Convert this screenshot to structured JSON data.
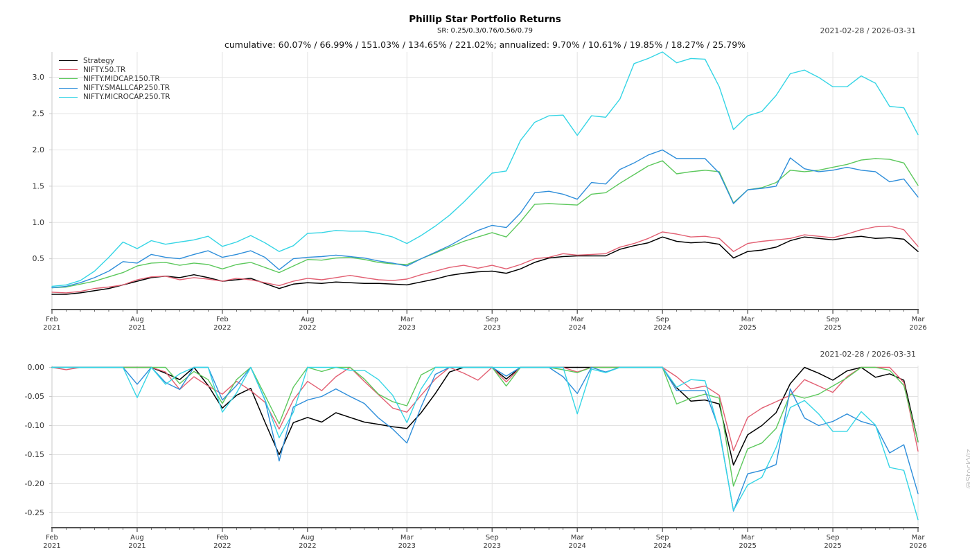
{
  "header": {
    "title": "Phillip Star Portfolio Returns",
    "subtitle": "SR: 0.25/0.3/0.76/0.56/0.79",
    "stats_line": "cumulative: 60.07% / 66.99% / 151.03% / 134.65% / 221.02%; annualized: 9.70% / 10.61% / 19.85% / 18.27% / 25.79%"
  },
  "watermark": "@StockViz",
  "chart_data": [
    {
      "type": "line",
      "title": "Cumulative returns",
      "date_range": "2021-02-28 / 2026-03-31",
      "x_start": "2021-02",
      "x_end": "2026-03",
      "x_tick_labels": [
        {
          "idx": 0,
          "month": "Feb",
          "year": "2021"
        },
        {
          "idx": 6,
          "month": "Aug",
          "year": "2021"
        },
        {
          "idx": 12,
          "month": "Feb",
          "year": "2022"
        },
        {
          "idx": 18,
          "month": "Aug",
          "year": "2022"
        },
        {
          "idx": 25,
          "month": "Mar",
          "year": "2023"
        },
        {
          "idx": 31,
          "month": "Sep",
          "year": "2023"
        },
        {
          "idx": 37,
          "month": "Mar",
          "year": "2024"
        },
        {
          "idx": 43,
          "month": "Sep",
          "year": "2024"
        },
        {
          "idx": 49,
          "month": "Mar",
          "year": "2025"
        },
        {
          "idx": 55,
          "month": "Sep",
          "year": "2025"
        },
        {
          "idx": 61,
          "month": "Mar",
          "year": "2026"
        }
      ],
      "ylim": [
        -0.2,
        3.35
      ],
      "y_ticks": [
        0.5,
        1.0,
        1.5,
        2.0,
        2.5,
        3.0
      ],
      "y_tick_labels": [
        "0.5",
        "1.0",
        "1.5",
        "2.0",
        "2.5",
        "3.0"
      ],
      "legend_position": "top-left",
      "grid": true,
      "series": [
        {
          "name": "Strategy",
          "color": "#000000",
          "values": [
            0.01,
            0.01,
            0.03,
            0.06,
            0.09,
            0.14,
            0.19,
            0.24,
            0.26,
            0.24,
            0.28,
            0.24,
            0.19,
            0.21,
            0.23,
            0.16,
            0.09,
            0.15,
            0.17,
            0.16,
            0.18,
            0.17,
            0.16,
            0.16,
            0.15,
            0.14,
            0.18,
            0.22,
            0.27,
            0.3,
            0.32,
            0.33,
            0.3,
            0.36,
            0.45,
            0.51,
            0.53,
            0.54,
            0.54,
            0.54,
            0.63,
            0.68,
            0.72,
            0.8,
            0.74,
            0.72,
            0.73,
            0.7,
            0.51,
            0.6,
            0.62,
            0.66,
            0.75,
            0.8,
            0.78,
            0.76,
            0.79,
            0.81,
            0.78,
            0.79,
            0.77,
            0.6
          ]
        },
        {
          "name": "NIFTY.50.TR",
          "color": "#e25f72",
          "values": [
            0.04,
            0.03,
            0.05,
            0.09,
            0.11,
            0.14,
            0.21,
            0.25,
            0.26,
            0.21,
            0.24,
            0.22,
            0.19,
            0.23,
            0.21,
            0.17,
            0.13,
            0.19,
            0.23,
            0.21,
            0.24,
            0.27,
            0.24,
            0.21,
            0.2,
            0.22,
            0.28,
            0.33,
            0.38,
            0.41,
            0.37,
            0.41,
            0.36,
            0.42,
            0.5,
            0.52,
            0.57,
            0.55,
            0.56,
            0.57,
            0.66,
            0.71,
            0.78,
            0.87,
            0.84,
            0.8,
            0.81,
            0.78,
            0.6,
            0.71,
            0.74,
            0.76,
            0.78,
            0.83,
            0.81,
            0.79,
            0.84,
            0.9,
            0.94,
            0.95,
            0.9,
            0.67
          ]
        },
        {
          "name": "NIFTY.MIDCAP.150.TR",
          "color": "#5cc85c",
          "values": [
            0.1,
            0.11,
            0.15,
            0.19,
            0.25,
            0.31,
            0.4,
            0.44,
            0.45,
            0.41,
            0.44,
            0.42,
            0.36,
            0.42,
            0.45,
            0.38,
            0.31,
            0.4,
            0.49,
            0.48,
            0.51,
            0.52,
            0.49,
            0.45,
            0.43,
            0.42,
            0.5,
            0.58,
            0.66,
            0.74,
            0.8,
            0.86,
            0.8,
            1.01,
            1.25,
            1.26,
            1.25,
            1.24,
            1.39,
            1.41,
            1.54,
            1.66,
            1.78,
            1.85,
            1.67,
            1.7,
            1.72,
            1.7,
            1.27,
            1.45,
            1.48,
            1.55,
            1.72,
            1.7,
            1.72,
            1.76,
            1.8,
            1.86,
            1.88,
            1.87,
            1.82,
            1.51
          ]
        },
        {
          "name": "NIFTY.SMALLCAP.250.TR",
          "color": "#2e8eda",
          "values": [
            0.1,
            0.12,
            0.17,
            0.24,
            0.33,
            0.46,
            0.44,
            0.56,
            0.52,
            0.5,
            0.56,
            0.61,
            0.52,
            0.56,
            0.61,
            0.52,
            0.35,
            0.5,
            0.52,
            0.53,
            0.55,
            0.53,
            0.51,
            0.47,
            0.44,
            0.4,
            0.5,
            0.59,
            0.68,
            0.79,
            0.89,
            0.96,
            0.93,
            1.13,
            1.41,
            1.43,
            1.39,
            1.32,
            1.55,
            1.53,
            1.73,
            1.82,
            1.93,
            2.0,
            1.88,
            1.88,
            1.88,
            1.68,
            1.26,
            1.45,
            1.47,
            1.5,
            1.89,
            1.74,
            1.7,
            1.72,
            1.76,
            1.72,
            1.7,
            1.56,
            1.6,
            1.35
          ]
        },
        {
          "name": "NIFTY.MICROCAP.250.TR",
          "color": "#35d5e5",
          "values": [
            0.12,
            0.14,
            0.2,
            0.33,
            0.52,
            0.73,
            0.64,
            0.75,
            0.7,
            0.73,
            0.76,
            0.81,
            0.67,
            0.73,
            0.82,
            0.72,
            0.6,
            0.68,
            0.85,
            0.86,
            0.89,
            0.88,
            0.88,
            0.85,
            0.8,
            0.71,
            0.82,
            0.95,
            1.1,
            1.28,
            1.48,
            1.68,
            1.71,
            2.13,
            2.38,
            2.47,
            2.48,
            2.2,
            2.47,
            2.45,
            2.7,
            3.19,
            3.26,
            3.35,
            3.2,
            3.26,
            3.25,
            2.87,
            2.28,
            2.47,
            2.53,
            2.75,
            3.05,
            3.1,
            3.0,
            2.87,
            2.87,
            3.02,
            2.92,
            2.6,
            2.58,
            2.21
          ]
        }
      ]
    },
    {
      "type": "line",
      "title": "Drawdowns",
      "date_range": "2021-02-28 / 2026-03-31",
      "x_tick_labels": [
        {
          "idx": 0,
          "month": "Feb",
          "year": "2021"
        },
        {
          "idx": 6,
          "month": "Aug",
          "year": "2021"
        },
        {
          "idx": 12,
          "month": "Feb",
          "year": "2022"
        },
        {
          "idx": 18,
          "month": "Aug",
          "year": "2022"
        },
        {
          "idx": 25,
          "month": "Mar",
          "year": "2023"
        },
        {
          "idx": 31,
          "month": "Sep",
          "year": "2023"
        },
        {
          "idx": 37,
          "month": "Mar",
          "year": "2024"
        },
        {
          "idx": 43,
          "month": "Sep",
          "year": "2024"
        },
        {
          "idx": 49,
          "month": "Mar",
          "year": "2025"
        },
        {
          "idx": 55,
          "month": "Sep",
          "year": "2025"
        },
        {
          "idx": 61,
          "month": "Mar",
          "year": "2026"
        }
      ],
      "ylim": [
        -0.2756,
        0.003
      ],
      "y_ticks": [
        0.0,
        -0.05,
        -0.1,
        -0.15,
        -0.2,
        -0.25
      ],
      "y_tick_labels": [
        "0.00",
        "-0.05",
        "-0.10",
        "-0.15",
        "-0.20",
        "-0.25"
      ],
      "grid": true,
      "series": [
        {
          "name": "Strategy",
          "color": "#000000",
          "values": [
            0,
            0,
            0,
            0,
            0,
            0,
            0,
            0,
            -0.01,
            -0.021,
            0,
            -0.031,
            -0.07,
            -0.048,
            -0.036,
            -0.094,
            -0.15,
            -0.095,
            -0.086,
            -0.094,
            -0.078,
            -0.086,
            -0.094,
            -0.098,
            -0.102,
            -0.105,
            -0.078,
            -0.045,
            -0.008,
            0,
            0,
            0,
            -0.02,
            0,
            0,
            0,
            0,
            0,
            0,
            0,
            0,
            0,
            0,
            0,
            -0.035,
            -0.058,
            -0.056,
            -0.063,
            -0.168,
            -0.116,
            -0.1,
            -0.078,
            -0.028,
            0,
            -0.01,
            -0.022,
            -0.006,
            0,
            -0.017,
            -0.011,
            -0.022,
            -0.128
          ]
        },
        {
          "name": "NIFTY.50.TR",
          "color": "#e25f72",
          "values": [
            0,
            -0.004,
            0,
            0,
            0,
            0,
            0,
            0,
            -0.008,
            -0.038,
            -0.016,
            -0.032,
            -0.046,
            -0.024,
            -0.04,
            -0.06,
            -0.106,
            -0.056,
            -0.024,
            -0.04,
            -0.016,
            0,
            -0.024,
            -0.047,
            -0.07,
            -0.077,
            -0.048,
            -0.02,
            0,
            -0.01,
            -0.022,
            0,
            -0.025,
            0,
            0,
            0,
            0,
            -0.008,
            0,
            0,
            0,
            0,
            0,
            0,
            -0.016,
            -0.037,
            -0.032,
            -0.048,
            -0.143,
            -0.086,
            -0.07,
            -0.059,
            -0.048,
            -0.021,
            -0.032,
            -0.043,
            -0.016,
            0,
            0,
            0,
            -0.026,
            -0.144
          ]
        },
        {
          "name": "NIFTY.MIDCAP.150.TR",
          "color": "#5cc85c",
          "values": [
            0,
            0,
            0,
            0,
            0,
            0,
            0,
            0,
            0,
            -0.028,
            -0.007,
            -0.021,
            -0.062,
            -0.021,
            0,
            -0.048,
            -0.097,
            -0.034,
            0,
            -0.007,
            0,
            0,
            -0.02,
            -0.046,
            -0.059,
            -0.066,
            -0.013,
            0,
            0,
            0,
            0,
            0,
            -0.032,
            0,
            0,
            0,
            -0.004,
            -0.009,
            0,
            0,
            0,
            0,
            0,
            0,
            -0.063,
            -0.053,
            -0.046,
            -0.053,
            -0.204,
            -0.14,
            -0.13,
            -0.105,
            -0.046,
            -0.053,
            -0.046,
            -0.032,
            -0.018,
            0,
            0,
            -0.005,
            -0.031,
            -0.128
          ]
        },
        {
          "name": "NIFTY.SMALLCAP.250.TR",
          "color": "#2e8eda",
          "values": [
            0,
            0,
            0,
            0,
            0,
            0,
            -0.029,
            0,
            -0.026,
            -0.038,
            0,
            0,
            -0.056,
            -0.031,
            0,
            -0.056,
            -0.161,
            -0.068,
            -0.056,
            -0.05,
            -0.037,
            -0.05,
            -0.062,
            -0.087,
            -0.106,
            -0.13,
            -0.068,
            -0.012,
            0,
            0,
            0,
            0,
            -0.015,
            0,
            0,
            0,
            -0.016,
            -0.045,
            0,
            -0.008,
            0,
            0,
            0,
            0,
            -0.04,
            -0.04,
            -0.04,
            -0.107,
            -0.247,
            -0.183,
            -0.177,
            -0.167,
            -0.037,
            -0.087,
            -0.1,
            -0.093,
            -0.08,
            -0.093,
            -0.1,
            -0.147,
            -0.133,
            -0.217
          ]
        },
        {
          "name": "NIFTY.MICROCAP.250.TR",
          "color": "#35d5e5",
          "values": [
            0,
            0,
            0,
            0,
            0,
            0,
            -0.052,
            0,
            -0.029,
            -0.011,
            0,
            0,
            -0.077,
            -0.044,
            0,
            -0.055,
            -0.121,
            -0.077,
            0,
            0,
            0,
            -0.005,
            -0.005,
            -0.021,
            -0.048,
            -0.095,
            -0.037,
            0,
            0,
            0,
            0,
            0,
            0,
            0,
            0,
            0,
            0,
            -0.08,
            -0.003,
            -0.009,
            0,
            0,
            0,
            0,
            -0.034,
            -0.021,
            -0.023,
            -0.11,
            -0.246,
            -0.202,
            -0.189,
            -0.138,
            -0.069,
            -0.057,
            -0.08,
            -0.11,
            -0.11,
            -0.076,
            -0.099,
            -0.172,
            -0.177,
            -0.262
          ]
        }
      ]
    }
  ]
}
